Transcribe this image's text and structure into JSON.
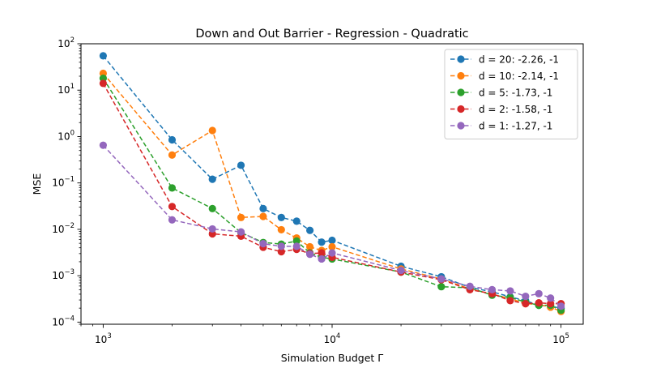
{
  "chart_data": {
    "type": "line",
    "title": "Down and Out Barrier - Regression - Quadratic",
    "xlabel": "Simulation Budget Γ",
    "ylabel": "MSE",
    "xscale": "log",
    "yscale": "log",
    "xlim": [
      800,
      125000
    ],
    "ylim": [
      9e-05,
      100
    ],
    "grid": false,
    "legend_position": "top-right",
    "x_ticks": [
      {
        "value": 1000,
        "base": "10",
        "exp": "3"
      },
      {
        "value": 10000,
        "base": "10",
        "exp": "4"
      },
      {
        "value": 100000,
        "base": "10",
        "exp": "5"
      }
    ],
    "y_ticks": [
      {
        "value": 0.0001,
        "base": "10",
        "exp": "−4"
      },
      {
        "value": 0.001,
        "base": "10",
        "exp": "−3"
      },
      {
        "value": 0.01,
        "base": "10",
        "exp": "−2"
      },
      {
        "value": 0.1,
        "base": "10",
        "exp": "−1"
      },
      {
        "value": 1,
        "base": "10",
        "exp": "0"
      },
      {
        "value": 10,
        "base": "10",
        "exp": "1"
      },
      {
        "value": 100,
        "base": "10",
        "exp": "2"
      }
    ],
    "x": [
      1000,
      2000,
      3000,
      4000,
      5000,
      6000,
      7000,
      8000,
      9000,
      10000,
      20000,
      30000,
      40000,
      50000,
      60000,
      70000,
      80000,
      90000,
      100000
    ],
    "series": [
      {
        "name": "d = 20: -2.26, -1",
        "color": "#1f77b4",
        "values": [
          55,
          0.85,
          0.12,
          0.24,
          0.028,
          0.018,
          0.015,
          0.0095,
          0.0053,
          0.0058,
          0.0016,
          0.00095,
          0.00056,
          0.00045,
          0.00035,
          0.00029,
          0.00023,
          0.00022,
          0.0002
        ]
      },
      {
        "name": "d = 10: -2.14, -1",
        "color": "#ff7f0e",
        "values": [
          23,
          0.4,
          1.35,
          0.018,
          0.019,
          0.0098,
          0.0065,
          0.0042,
          0.0035,
          0.0042,
          0.0014,
          0.00085,
          0.00052,
          0.0004,
          0.00032,
          0.00025,
          0.00024,
          0.00021,
          0.00017
        ]
      },
      {
        "name": "d = 5: -1.73, -1",
        "color": "#2ca02c",
        "values": [
          18,
          0.078,
          0.028,
          0.0085,
          0.0052,
          0.0048,
          0.0056,
          0.0031,
          0.0025,
          0.0023,
          0.0012,
          0.00058,
          0.00055,
          0.00038,
          0.00034,
          0.00027,
          0.00023,
          0.00023,
          0.00018
        ]
      },
      {
        "name": "d = 2: -1.58, -1",
        "color": "#d62728",
        "values": [
          14,
          0.031,
          0.008,
          0.0071,
          0.0041,
          0.0033,
          0.0037,
          0.003,
          0.0031,
          0.0025,
          0.0012,
          0.00082,
          0.0005,
          0.00041,
          0.00029,
          0.00025,
          0.00026,
          0.00025,
          0.00025
        ]
      },
      {
        "name": "d = 1: -1.27, -1",
        "color": "#9467bd",
        "values": [
          0.65,
          0.016,
          0.0102,
          0.0088,
          0.0049,
          0.0043,
          0.0043,
          0.0029,
          0.0023,
          0.0031,
          0.0013,
          0.00085,
          0.00059,
          0.0005,
          0.00047,
          0.00036,
          0.00041,
          0.00033,
          0.00022
        ]
      }
    ]
  }
}
